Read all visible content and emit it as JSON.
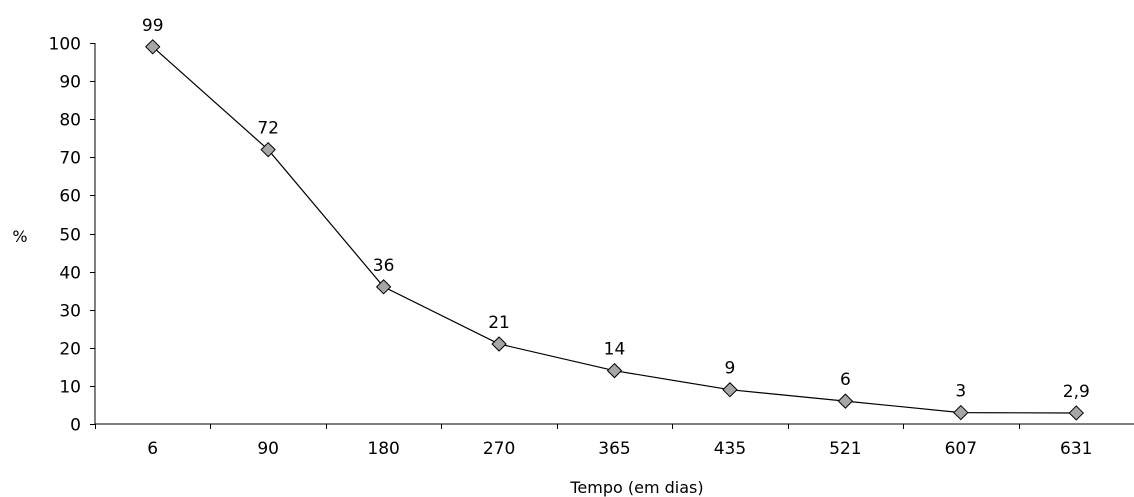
{
  "chart_data": {
    "type": "line",
    "title": "",
    "xlabel": "Tempo (em dias)",
    "ylabel": "%",
    "categories": [
      "6",
      "90",
      "180",
      "270",
      "365",
      "435",
      "521",
      "607",
      "631"
    ],
    "series": [
      {
        "values": [
          99,
          72,
          36,
          21,
          14,
          9,
          6,
          3,
          2.9
        ],
        "data_labels": [
          "99",
          "72",
          "36",
          "21",
          "14",
          "9",
          "6",
          "3",
          "2,9"
        ],
        "marker": "diamond",
        "marker_color": "#a6a6a6",
        "line_color": "#000000"
      }
    ],
    "ylim": [
      0,
      100
    ],
    "yticks": [
      "0",
      "10",
      "20",
      "30",
      "40",
      "50",
      "60",
      "70",
      "80",
      "90",
      "100"
    ],
    "grid": false,
    "legend": "none"
  }
}
